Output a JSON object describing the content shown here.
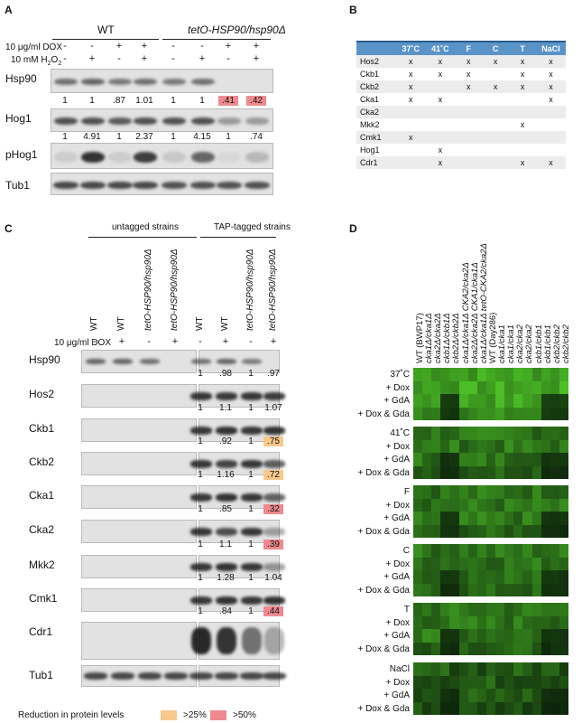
{
  "panels": {
    "a": "A",
    "b": "B",
    "c": "C",
    "d": "D"
  },
  "panel_a": {
    "group_wt": "WT",
    "group_mut": "tetO-HSP90/hsp90Δ",
    "cond_dox": "10 μg/ml DOX",
    "cond_h2o2_prefix": "10 mM H",
    "cond_h2o2_sub": "2",
    "cond_h2o2_suffix": "O",
    "cond_h2o2_sub2": "2",
    "dox_signs": [
      "-",
      "-",
      "+",
      "+",
      "-",
      "-",
      "+",
      "+"
    ],
    "h2o2_signs": [
      "-",
      "+",
      "-",
      "+",
      "-",
      "+",
      "-",
      "+"
    ],
    "rows": [
      "Hsp90",
      "Hog1",
      "pHog1",
      "Tub1"
    ],
    "hog1_values": [
      "1",
      "1",
      ".87",
      "1.01",
      "1",
      "1",
      ".41",
      ".42"
    ],
    "phog1_values": [
      "1",
      "4.91",
      "1",
      "2.37",
      "1",
      "4.15",
      "1",
      ".74"
    ]
  },
  "panel_b": {
    "headers": [
      "",
      "37˚C",
      "41˚C",
      "F",
      "C",
      "T",
      "NaCl"
    ],
    "rows": [
      [
        "Hos2",
        "x",
        "x",
        "x",
        "x",
        "x",
        "x"
      ],
      [
        "Ckb1",
        "x",
        "x",
        "x",
        "",
        "x",
        "x"
      ],
      [
        "Ckb2",
        "x",
        "",
        "x",
        "x",
        "x",
        "x"
      ],
      [
        "Cka1",
        "x",
        "x",
        "",
        "",
        "",
        "x"
      ],
      [
        "Cka2",
        "",
        "",
        "",
        "",
        "",
        ""
      ],
      [
        "Mkk2",
        "",
        "",
        "",
        "",
        "x",
        ""
      ],
      [
        "Cmk1",
        "x",
        "",
        "",
        "",
        "",
        ""
      ],
      [
        "Hog1",
        "",
        "x",
        "",
        "",
        "",
        ""
      ],
      [
        "Cdr1",
        "",
        "x",
        "",
        "",
        "x",
        "x"
      ]
    ]
  },
  "panel_c": {
    "group_untagged": "untagged strains",
    "group_tap": "TAP-tagged strains",
    "lanes": [
      "WT",
      "WT",
      "tetO-HSP90/hsp90Δ",
      "tetO-HSP90/hsp90Δ",
      "WT",
      "WT",
      "tetO-HSP90/hsp90Δ",
      "tetO-HSP90/hsp90Δ"
    ],
    "cond_dox": "10 μg/ml DOX",
    "dox_signs": [
      "-",
      "+",
      "-",
      "+",
      "-",
      "+",
      "-",
      "+"
    ],
    "rows": [
      {
        "name": "Hsp90",
        "values": []
      },
      {
        "name": "Hos2",
        "values": [
          "1",
          ".98",
          "1",
          ".97"
        ]
      },
      {
        "name": "Ckb1",
        "values": [
          "1",
          "1.1",
          "1",
          "1.07"
        ]
      },
      {
        "name": "Ckb2",
        "values": [
          "1",
          ".92",
          "1",
          ".75"
        ]
      },
      {
        "name": "Cka1",
        "values": [
          "1",
          "1.16",
          "1",
          ".72"
        ]
      },
      {
        "name": "Cka2",
        "values": [
          "1",
          ".85",
          "1",
          ".32"
        ]
      },
      {
        "name": "Mkk2",
        "values": [
          "1",
          "1.1",
          "1",
          ".39"
        ]
      },
      {
        "name": "Cmk1",
        "values": [
          "1",
          "1.28",
          "1",
          "1.04"
        ]
      },
      {
        "name": "Cdr1",
        "values": [
          "1",
          ".84",
          "1",
          ".44"
        ]
      },
      {
        "name": "Tub1",
        "values": []
      }
    ],
    "legend_title": "Reduction in protein levels",
    "legend_25": ">25%",
    "legend_50": ">50%",
    "color_25": "#f7c98a",
    "color_50": "#ee8a8f"
  },
  "panel_d": {
    "columns": [
      "WT (BWP17)",
      "cka1Δ/cka1Δ",
      "cka2Δ/cka2Δ",
      "ckb1Δ/ckb1Δ",
      "ckb2Δ/ckb2Δ",
      "cka1Δ/cka1Δ CKA2/cka2Δ",
      "cka2Δ/cka2Δ CKA1/cka1Δ",
      "cka1Δ/cka1Δ tetO-CKA2/cka2Δ",
      "WT (Day286)",
      "cka1/cka1",
      "cka1/cka1",
      "cka2/cka2",
      "cka2/cka2",
      "ckb1/ckb1",
      "ckb1/ckb1",
      "ckb2/ckb2",
      "ckb2/ckb2"
    ],
    "blocks": [
      {
        "rows": [
          "37˚C",
          "+ Dox",
          "+ GdA",
          "+ Dox & Gda"
        ]
      },
      {
        "rows": [
          "41˚C",
          "+ Dox",
          "+ GdA",
          "+ Dox & Gda"
        ]
      },
      {
        "rows": [
          "F",
          "+ Dox",
          "+ GdA",
          "+ Dox & Gda"
        ]
      },
      {
        "rows": [
          "C",
          "+ Dox",
          "+ GdA",
          "+ Dox & Gda"
        ]
      },
      {
        "rows": [
          "T",
          "+ Dox",
          "+ GdA",
          "+ Dox & Gda"
        ]
      },
      {
        "rows": [
          "NaCl",
          "+ Dox",
          "+ GdA",
          "+ Dox & Gda"
        ]
      }
    ]
  }
}
